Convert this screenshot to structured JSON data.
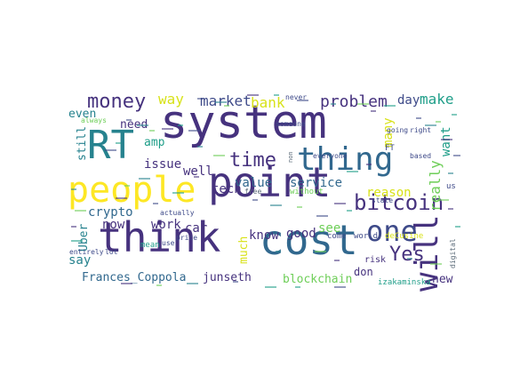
{
  "word_cloud": {
    "colors": {
      "purple": "#46327e",
      "indigo": "#3e4a89",
      "blue": "#31688e",
      "teal": "#26828e",
      "green": "#1f9e89",
      "lime": "#6ece58",
      "yellow": "#d8e219",
      "gold": "#fde725",
      "gray": "#5a6a78"
    },
    "words": [
      {
        "text": "system",
        "color": "#46327e"
      },
      {
        "text": "point",
        "color": "#46327e"
      },
      {
        "text": "think",
        "color": "#46327e"
      },
      {
        "text": "cost",
        "color": "#31688e"
      },
      {
        "text": "people",
        "color": "#fde725"
      },
      {
        "text": "RT",
        "color": "#26828e"
      },
      {
        "text": "thing",
        "color": "#31688e"
      },
      {
        "text": "will",
        "color": "#46327e"
      },
      {
        "text": "one",
        "color": "#3e4a89"
      },
      {
        "text": "bitcoin",
        "color": "#46327e"
      },
      {
        "text": "money",
        "color": "#46327e"
      },
      {
        "text": "time",
        "color": "#46327e"
      },
      {
        "text": "Yes",
        "color": "#46327e"
      },
      {
        "text": "problem",
        "color": "#46327e"
      },
      {
        "text": "way",
        "color": "#d8e219"
      },
      {
        "text": "market",
        "color": "#3e4a89"
      },
      {
        "text": "bank",
        "color": "#d8e219"
      },
      {
        "text": "day",
        "color": "#3e4a89"
      },
      {
        "text": "make",
        "color": "#1f9e89"
      },
      {
        "text": "really",
        "color": "#6ece58"
      },
      {
        "text": "want",
        "color": "#1f9e89"
      },
      {
        "text": "many",
        "color": "#d8e219"
      },
      {
        "text": "service",
        "color": "#31688e"
      },
      {
        "text": "value",
        "color": "#31688e"
      },
      {
        "text": "reason",
        "color": "#d8e219"
      },
      {
        "text": "tech",
        "color": "#46327e"
      },
      {
        "text": "well",
        "color": "#46327e"
      },
      {
        "text": "issue",
        "color": "#46327e"
      },
      {
        "text": "amp",
        "color": "#1f9e89"
      },
      {
        "text": "need",
        "color": "#46327e"
      },
      {
        "text": "even",
        "color": "#26828e"
      },
      {
        "text": "still",
        "color": "#26828e"
      },
      {
        "text": "crypto",
        "color": "#31688e"
      },
      {
        "text": "now",
        "color": "#46327e"
      },
      {
        "text": "work",
        "color": "#46327e"
      },
      {
        "text": "car",
        "color": "#46327e"
      },
      {
        "text": "Uber",
        "color": "#26828e"
      },
      {
        "text": "say",
        "color": "#26828e"
      },
      {
        "text": "know",
        "color": "#46327e"
      },
      {
        "text": "good",
        "color": "#46327e"
      },
      {
        "text": "see",
        "color": "#6ece58"
      },
      {
        "text": "much",
        "color": "#d8e219"
      },
      {
        "text": "blockchain",
        "color": "#6ece58"
      },
      {
        "text": "Frances_Coppola",
        "color": "#31688e"
      },
      {
        "text": "junseth",
        "color": "#46327e"
      },
      {
        "text": "new",
        "color": "#46327e"
      },
      {
        "text": "don",
        "color": "#46327e"
      },
      {
        "text": "risk",
        "color": "#46327e"
      },
      {
        "text": "come",
        "color": "#3e4a89"
      },
      {
        "text": "world",
        "color": "#3e4a89"
      },
      {
        "text": "deCusine",
        "color": "#d8e219"
      },
      {
        "text": "izakaminska",
        "color": "#1f9e89"
      },
      {
        "text": "digital",
        "color": "#5a6a78"
      },
      {
        "text": "state",
        "color": "#3e4a89"
      },
      {
        "text": "us",
        "color": "#3e4a89"
      },
      {
        "text": "going",
        "color": "#3e4a89"
      },
      {
        "text": "right",
        "color": "#3e4a89"
      },
      {
        "text": "FT",
        "color": "#3e4a89"
      },
      {
        "text": "based",
        "color": "#3e4a89"
      },
      {
        "text": "everyone",
        "color": "#3e4a89"
      },
      {
        "text": "without",
        "color": "#6ece58"
      },
      {
        "text": "free",
        "color": "#5a6a78"
      },
      {
        "text": "actually",
        "color": "#3e4a89"
      },
      {
        "text": "price",
        "color": "#3e4a89"
      },
      {
        "text": "use",
        "color": "#3e4a89"
      },
      {
        "text": "mean",
        "color": "#1f9e89"
      },
      {
        "text": "entirely",
        "color": "#3e4a89"
      },
      {
        "text": "lot",
        "color": "#3e4a89"
      },
      {
        "text": "always",
        "color": "#6ece58"
      },
      {
        "text": "someone",
        "color": "#3e4a89"
      },
      {
        "text": "never",
        "color": "#3e4a89"
      },
      {
        "text": "non",
        "color": "#5a6a78"
      }
    ]
  }
}
